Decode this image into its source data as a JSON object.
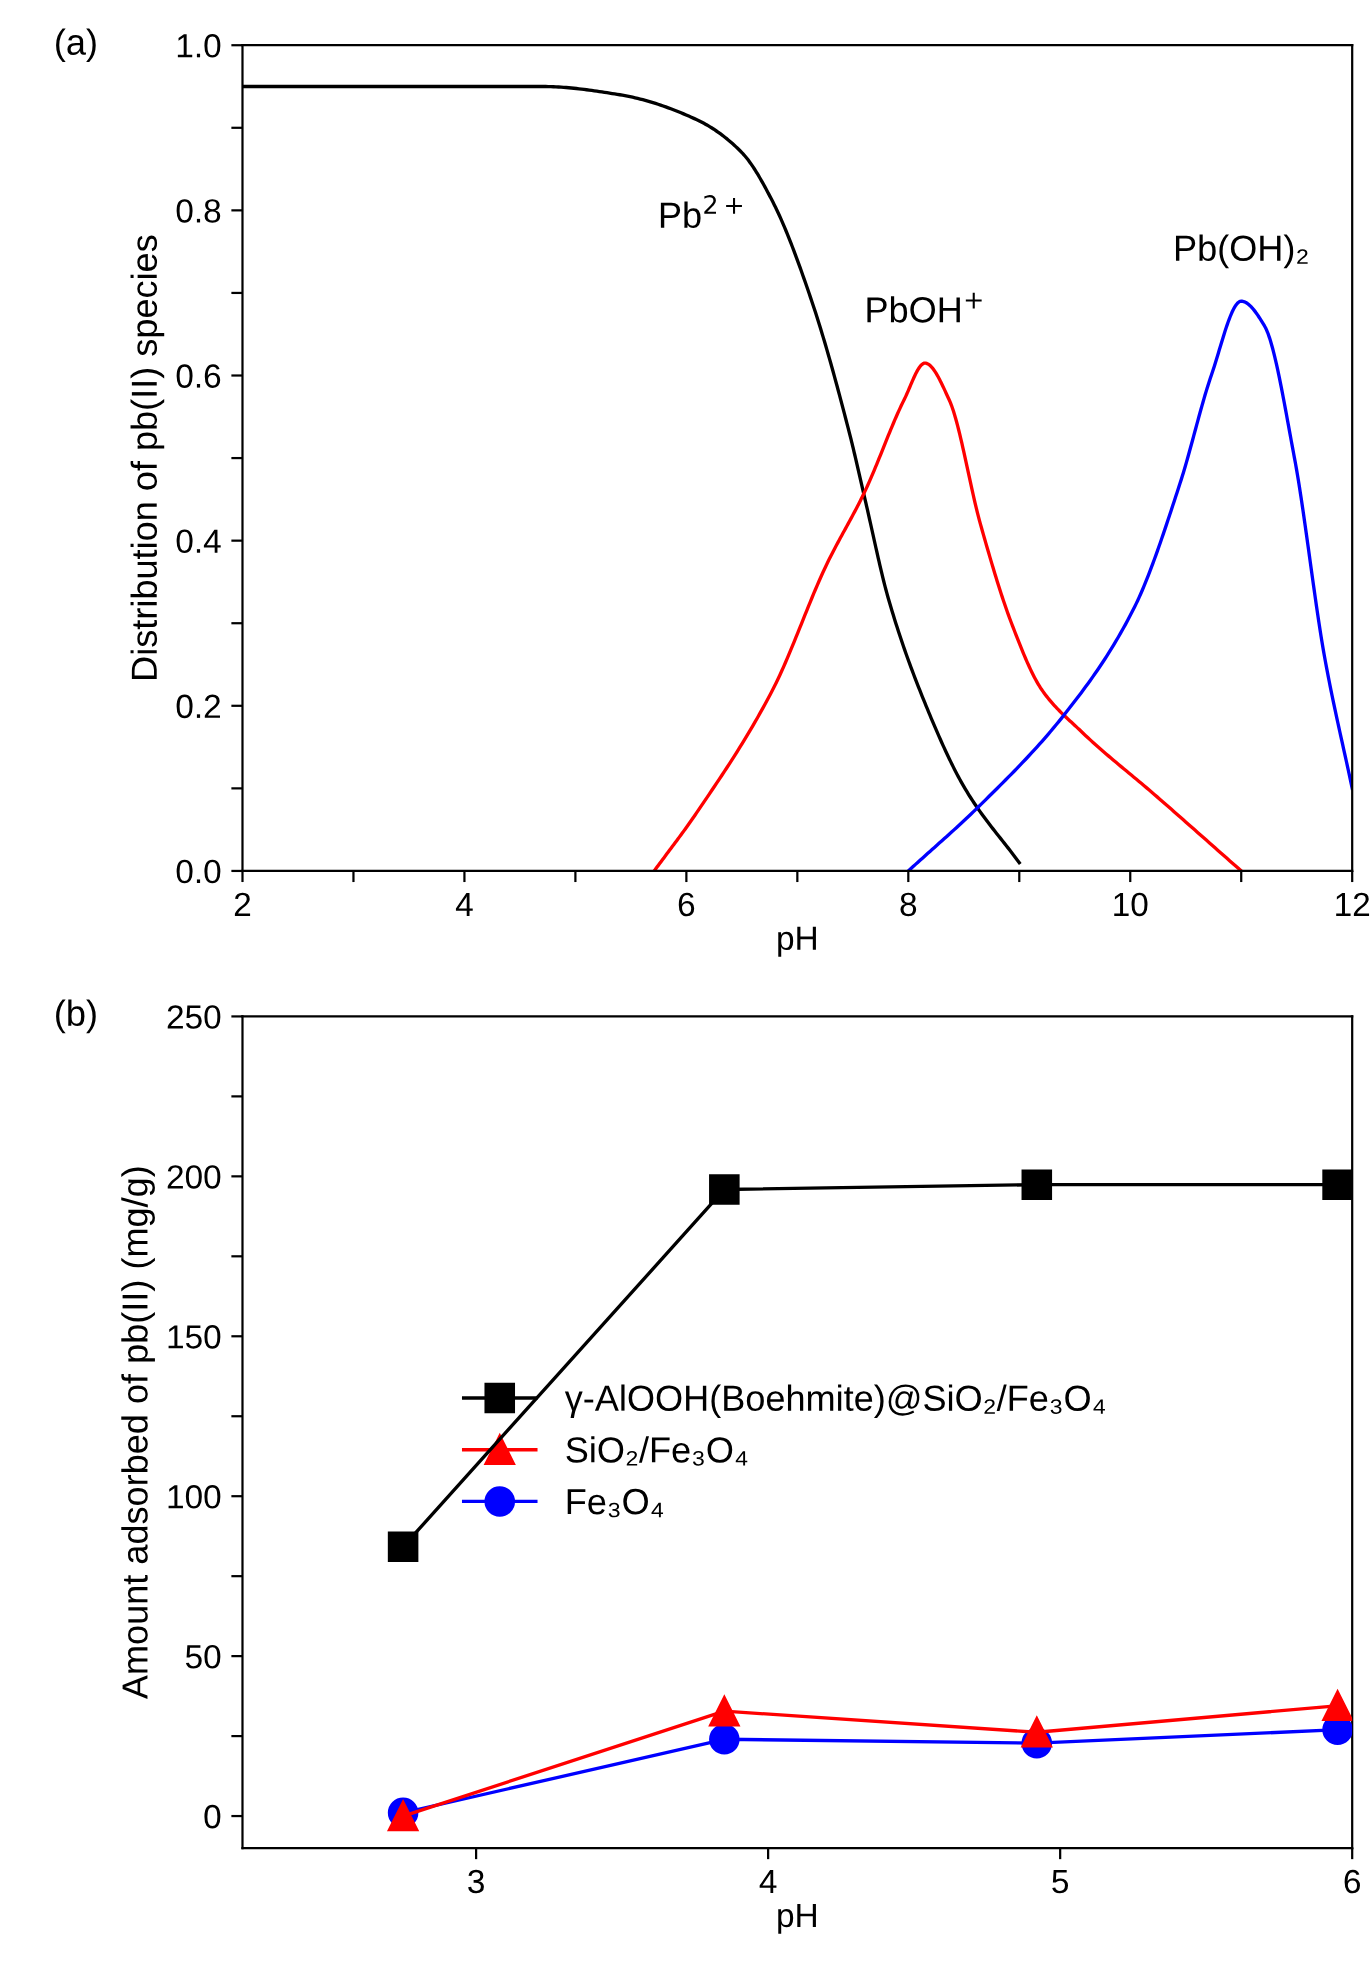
{
  "chart_data": [
    {
      "type": "line",
      "xlabel": "pH",
      "ylabel": "Distribution of pb(II) species",
      "annotations": [
        "(a)"
      ],
      "xlim": [
        2,
        12
      ],
      "ylim": [
        0,
        1.0
      ],
      "xticks": [
        2,
        {
          "value": 3,
          "label": null
        },
        4,
        {
          "value": 5,
          "label": null
        },
        6,
        {
          "value": 7,
          "label": null
        },
        8,
        {
          "value": 9,
          "label": null
        },
        10,
        {
          "value": 11,
          "label": null
        },
        12
      ],
      "yticks": [
        {
          "value": 0,
          "label": "0.0"
        },
        {
          "value": 0.1,
          "label": null
        },
        0.2,
        {
          "value": 0.3,
          "label": null
        },
        0.4,
        {
          "value": 0.5,
          "label": null
        },
        0.6,
        {
          "value": 0.7,
          "label": null
        },
        0.8,
        {
          "value": 0.9,
          "label": null
        },
        {
          "value": 1.0,
          "label": "1.0"
        }
      ],
      "grid": false,
      "legend": false,
      "marker": "none",
      "line_style": "solid",
      "series": [
        {
          "name": "Pb$^{2+}$",
          "color": "#000000",
          "x": [
            2,
            3,
            4,
            4.71,
            5.4,
            6.09,
            6.5,
            6.78,
            7.13,
            7.47,
            7.61,
            7.82,
            8.16,
            8.51,
            9.0
          ],
          "values": [
            0.95,
            0.95,
            0.95,
            0.95,
            0.94,
            0.91,
            0.87,
            0.81,
            0.69,
            0.53,
            0.45,
            0.33,
            0.2,
            0.1,
            0.01
          ]
        },
        {
          "name": "PbOH$^{+}$",
          "color": "#ff0000",
          "x": [
            5.71,
            6.09,
            6.78,
            7.26,
            7.61,
            7.96,
            8.15,
            8.37,
            8.65,
            8.93,
            9.2,
            9.55,
            10.24,
            11.0
          ],
          "values": [
            0,
            0.07,
            0.22,
            0.37,
            0.46,
            0.57,
            0.615,
            0.57,
            0.42,
            0.3,
            0.22,
            0.17,
            0.09,
            0
          ]
        },
        {
          "name": "Pb(OH)₂",
          "color": "#0000ff",
          "x": [
            8.0,
            8.65,
            9.41,
            10.04,
            10.45,
            10.73,
            11.0,
            11.21,
            11.48,
            11.75,
            12.0
          ],
          "values": [
            0,
            0.08,
            0.19,
            0.32,
            0.47,
            0.6,
            0.69,
            0.66,
            0.5,
            0.26,
            0.1
          ]
        }
      ]
    },
    {
      "type": "line",
      "xlabel": "pH",
      "ylabel": "Amount adsorbed of pb(II) (mg/g)",
      "annotations": [
        "(b)"
      ],
      "xlim": [
        2.2,
        6
      ],
      "ylim": [
        -10,
        250
      ],
      "xticks": [
        3,
        4,
        5,
        6
      ],
      "yticks": [
        0,
        {
          "value": 25,
          "label": null
        },
        50,
        {
          "value": 75,
          "label": null
        },
        100,
        {
          "value": 125,
          "label": null
        },
        150,
        {
          "value": 175,
          "label": null
        },
        200,
        {
          "value": 225,
          "label": null
        },
        250
      ],
      "grid": false,
      "legend": "center left",
      "line_style": "solid",
      "x": [
        2.75,
        3.85,
        4.92,
        5.95
      ],
      "series": [
        {
          "name": "γ-AlOOH(Boehmite)@SiO₂/Fe₃O₄",
          "color": "#000000",
          "marker": "square",
          "values": [
            84.2,
            195.9,
            197.4,
            197.4
          ]
        },
        {
          "name": "SiO₂/Fe₃O₄",
          "color": "#ff0000",
          "marker": "triangle",
          "values": [
            0,
            32.8,
            26.2,
            34.5
          ]
        },
        {
          "name": "Fe₃O₄",
          "color": "#0000ff",
          "marker": "circle",
          "values": [
            1,
            24.0,
            22.8,
            27.0
          ]
        }
      ]
    }
  ]
}
